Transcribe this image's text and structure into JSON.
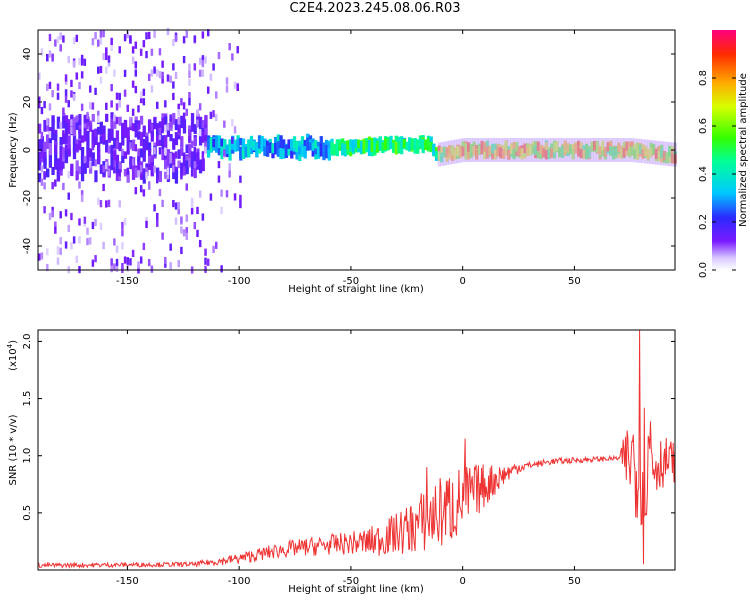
{
  "title": "C2E4.2023.245.08.06.R03",
  "chart_data": [
    {
      "type": "heatmap",
      "xlabel": "Height of straight line (km)",
      "ylabel": "Frequency (Hz)",
      "xlim": [
        -190,
        95
      ],
      "ylim": [
        -50,
        50
      ],
      "xticks": [
        -150,
        -100,
        -50,
        0,
        50
      ],
      "yticks": [
        -40,
        -20,
        0,
        20,
        40
      ],
      "colorbar": {
        "label": "Normalized spectral amplitude",
        "range": [
          0.0,
          1.0
        ],
        "ticks": [
          0.0,
          0.2,
          0.4,
          0.6,
          0.8
        ],
        "colormap": "rainbow"
      },
      "band": {
        "center_hz": [
          {
            "x": -190,
            "y": 1
          },
          {
            "x": -100,
            "y": 1
          },
          {
            "x": -60,
            "y": 1
          },
          {
            "x": -30,
            "y": 2
          },
          {
            "x": -15,
            "y": 3
          },
          {
            "x": -12,
            "y": -2
          },
          {
            "x": 0,
            "y": 0
          },
          {
            "x": 20,
            "y": 0
          },
          {
            "x": 75,
            "y": 0
          },
          {
            "x": 85,
            "y": -1
          },
          {
            "x": 95,
            "y": -2
          }
        ],
        "description_regions": [
          {
            "x_range": [
              -190,
              -115
            ],
            "level": 0.15,
            "scatter_hz": 50
          },
          {
            "x_range": [
              -115,
              -60
            ],
            "level": 0.35,
            "scatter_hz": 12
          },
          {
            "x_range": [
              -60,
              -12
            ],
            "level": 0.5,
            "scatter_hz": 6
          },
          {
            "x_range": [
              -12,
              95
            ],
            "level": 0.75,
            "scatter_hz": 4
          }
        ]
      }
    },
    {
      "type": "line",
      "xlabel": "Height of straight line (km)",
      "ylabel": "SNR (10 * v/v)",
      "y_multiplier_label": "(x10",
      "y_multiplier_exp": "4",
      "y_multiplier_close": ")",
      "xlim": [
        -190,
        95
      ],
      "ylim": [
        0,
        2.1
      ],
      "xticks": [
        -150,
        -100,
        -50,
        0,
        50
      ],
      "yticks": [
        0.5,
        1.0,
        1.5,
        2.0
      ],
      "ytick_labels": [
        "0.5",
        "1.0",
        "1.5",
        "2.0"
      ],
      "color": "#ee3333",
      "series": [
        {
          "trend": [
            {
              "x": -190,
              "y": 0.04
            },
            {
              "x": -120,
              "y": 0.05
            },
            {
              "x": -100,
              "y": 0.1
            },
            {
              "x": -80,
              "y": 0.18
            },
            {
              "x": -60,
              "y": 0.22
            },
            {
              "x": -40,
              "y": 0.25
            },
            {
              "x": -25,
              "y": 0.35
            },
            {
              "x": -15,
              "y": 0.45
            },
            {
              "x": -5,
              "y": 0.55
            },
            {
              "x": 5,
              "y": 0.68
            },
            {
              "x": 15,
              "y": 0.8
            },
            {
              "x": 25,
              "y": 0.9
            },
            {
              "x": 40,
              "y": 0.95
            },
            {
              "x": 60,
              "y": 0.97
            },
            {
              "x": 75,
              "y": 0.98
            },
            {
              "x": 80,
              "y": 0.95
            },
            {
              "x": 95,
              "y": 0.95
            }
          ],
          "noise": [
            {
              "x": -190,
              "y": 0.02
            },
            {
              "x": -120,
              "y": 0.02
            },
            {
              "x": -90,
              "y": 0.06
            },
            {
              "x": -50,
              "y": 0.1
            },
            {
              "x": -30,
              "y": 0.18
            },
            {
              "x": -15,
              "y": 0.3
            },
            {
              "x": -5,
              "y": 0.35
            },
            {
              "x": 5,
              "y": 0.25
            },
            {
              "x": 20,
              "y": 0.08
            },
            {
              "x": 30,
              "y": 0.03
            },
            {
              "x": 70,
              "y": 0.02
            },
            {
              "x": 76,
              "y": 0.5
            },
            {
              "x": 82,
              "y": 0.6
            },
            {
              "x": 88,
              "y": 0.25
            },
            {
              "x": 95,
              "y": 0.18
            }
          ],
          "peaks": [
            {
              "x": -16,
              "y": 0.9
            },
            {
              "x": 1,
              "y": 1.15
            },
            {
              "x": 79,
              "y": 2.1
            },
            {
              "x": 81,
              "y": 0.05
            },
            {
              "x": 84,
              "y": 1.3
            }
          ]
        }
      ]
    }
  ]
}
